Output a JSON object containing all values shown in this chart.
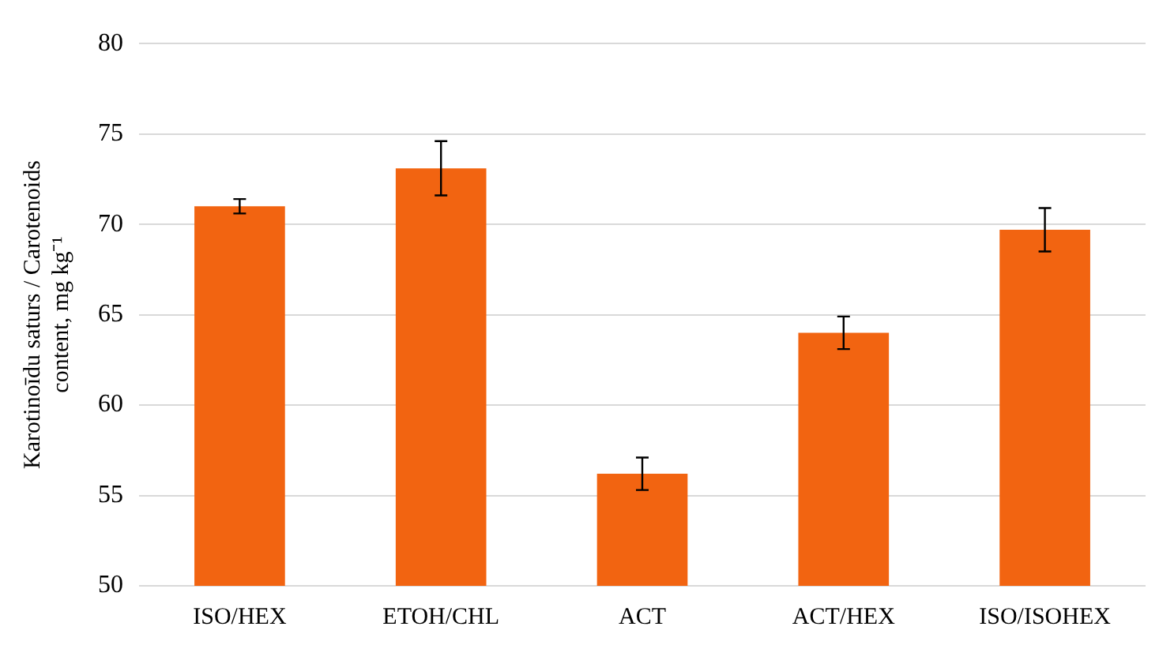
{
  "chart_data": {
    "type": "bar",
    "ylabel": "Karotinoīdu saturs / Carotenoids content, mg kg⁻¹",
    "categories": [
      "ISO/HEX",
      "ETOH/CHL",
      "ACT",
      "ACT/HEX",
      "ISO/ISOHEX"
    ],
    "values": [
      71.0,
      73.1,
      56.2,
      64.0,
      69.7
    ],
    "errors": [
      0.4,
      1.5,
      0.9,
      0.9,
      1.2
    ],
    "color": "#f26411",
    "ylim": [
      50,
      80
    ],
    "yticks": [
      50,
      55,
      60,
      65,
      70,
      75,
      80
    ],
    "grid": "y",
    "legend": false
  }
}
